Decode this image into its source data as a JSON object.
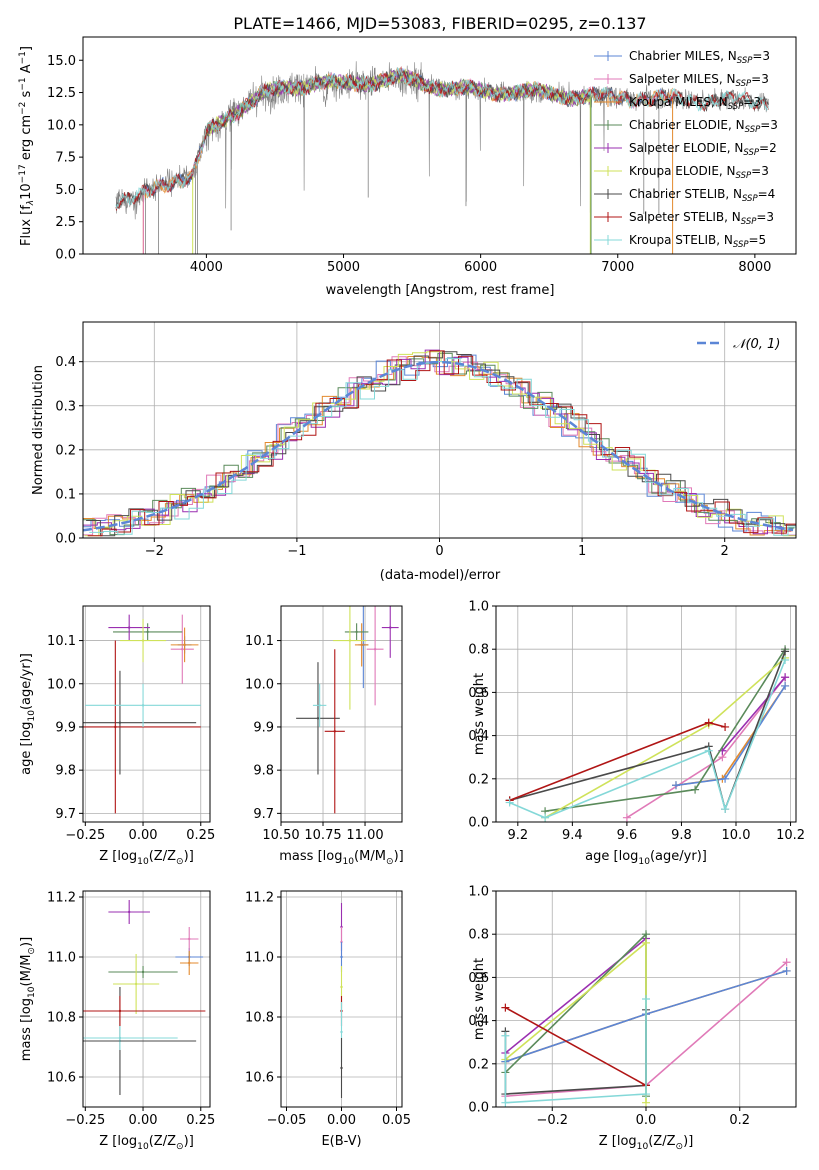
{
  "figure_title": "PLATE=1466, MJD=53083, FIBERID=0295, z=0.137",
  "colors": {
    "Chabrier MILES": "#5b86d6",
    "Salpeter MILES": "#e07ab8",
    "Kroupa MILES": "#e38a2e",
    "Chabrier ELODIE": "#5a8a5a",
    "Salpeter ELODIE": "#9a2fb0",
    "Kroupa ELODIE": "#cfe25a",
    "Chabrier STELIB": "#4a4a4a",
    "Salpeter STELIB": "#b01515",
    "Kroupa STELIB": "#84d8d8",
    "data": "#808080",
    "gaussian": "#5b86d6"
  },
  "chart_data": [
    {
      "type": "line",
      "id": "spectrum",
      "title": "PLATE=1466, MJD=53083, FIBERID=0295, z=0.137",
      "xlabel": "wavelength [Angstrom, rest frame]",
      "ylabel_parts": [
        "Flux [f",
        "λ",
        "10",
        "−17",
        " erg cm",
        "−2",
        " s",
        "−1",
        " A",
        "−1",
        "]"
      ],
      "xlim": [
        3100,
        8300
      ],
      "ylim": [
        0,
        16.8
      ],
      "xticks": [
        "4000",
        "5000",
        "6000",
        "7000",
        "8000"
      ],
      "yticks": [
        "0.0",
        "2.5",
        "5.0",
        "7.5",
        "10.0",
        "12.5",
        "15.0"
      ],
      "xtick_values": [
        4000,
        5000,
        6000,
        7000,
        8000
      ],
      "ytick_values": [
        0,
        2.5,
        5,
        7.5,
        10,
        12.5,
        15
      ],
      "data_range": [
        3340,
        8100
      ],
      "legend": [
        {
          "name": "Chabrier MILES, N",
          "sub": "SSP",
          "suffix": "=3"
        },
        {
          "name": "Salpeter MILES, N",
          "sub": "SSP",
          "suffix": "=3"
        },
        {
          "name": "Kroupa MILES, N",
          "sub": "SSP",
          "suffix": "=3"
        },
        {
          "name": "Chabrier ELODIE, N",
          "sub": "SSP",
          "suffix": "=3"
        },
        {
          "name": "Salpeter ELODIE, N",
          "sub": "SSP",
          "suffix": "=2"
        },
        {
          "name": "Kroupa ELODIE, N",
          "sub": "SSP",
          "suffix": "=3"
        },
        {
          "name": "Chabrier STELIB, N",
          "sub": "SSP",
          "suffix": "=4"
        },
        {
          "name": "Salpeter STELIB, N",
          "sub": "SSP",
          "suffix": "=3"
        },
        {
          "name": "Kroupa STELIB, N",
          "sub": "SSP",
          "suffix": "=5"
        }
      ],
      "continuum": [
        [
          3340,
          4.0
        ],
        [
          3500,
          4.3
        ],
        [
          3700,
          5.6
        ],
        [
          3900,
          6.0
        ],
        [
          4000,
          9.3
        ],
        [
          4200,
          11.0
        ],
        [
          4400,
          12.3
        ],
        [
          4600,
          12.9
        ],
        [
          4800,
          13.3
        ],
        [
          5000,
          13.1
        ],
        [
          5200,
          13.4
        ],
        [
          5400,
          13.6
        ],
        [
          5600,
          13.2
        ],
        [
          5800,
          12.8
        ],
        [
          6000,
          12.6
        ],
        [
          6200,
          12.6
        ],
        [
          6400,
          12.5
        ],
        [
          6600,
          12.3
        ],
        [
          6800,
          12.2
        ],
        [
          7000,
          12.1
        ],
        [
          7200,
          12.1
        ],
        [
          7400,
          12.0
        ],
        [
          7600,
          11.9
        ],
        [
          7800,
          11.9
        ],
        [
          8100,
          11.8
        ]
      ]
    },
    {
      "type": "histogram",
      "id": "residuals",
      "xlabel": "(data-model)/error",
      "ylabel": "Normed distribution",
      "xlim": [
        -2.5,
        2.5
      ],
      "ylim": [
        0,
        0.49
      ],
      "xticks": [
        "−2",
        "−1",
        "0",
        "1",
        "2"
      ],
      "xtick_values": [
        -2,
        -1,
        0,
        1,
        2
      ],
      "yticks": [
        "0.0",
        "0.1",
        "0.2",
        "0.3",
        "0.4"
      ],
      "ytick_values": [
        0,
        0.1,
        0.2,
        0.3,
        0.4
      ],
      "legend": "𝒩(0, 1)",
      "bin_width": 0.1
    },
    {
      "type": "scatter",
      "id": "age-vs-Z",
      "xlabel_parts": [
        "Z [log",
        "10",
        "(Z/Z",
        "⊙",
        ")]"
      ],
      "ylabel_parts": [
        "age  [log",
        "10",
        "(age/yr)]"
      ],
      "xlim": [
        -0.26,
        0.29
      ],
      "ylim": [
        9.68,
        10.18
      ],
      "xticks": [
        "−0.25",
        "0.00",
        "0.25"
      ],
      "xtick_values": [
        -0.25,
        0,
        0.25
      ],
      "yticks": [
        "9.7",
        "9.8",
        "9.9",
        "10.0",
        "10.1"
      ],
      "ytick_values": [
        9.7,
        9.8,
        9.9,
        10.0,
        10.1
      ],
      "points": [
        {
          "model": "Chabrier MILES",
          "x": 0.18,
          "y": 10.09,
          "xerr": 0.03,
          "yerr": 0.02
        },
        {
          "model": "Salpeter MILES",
          "x": 0.17,
          "y": 10.08,
          "xerr": 0.05,
          "yerr": 0.08
        },
        {
          "model": "Kroupa MILES",
          "x": 0.18,
          "y": 10.09,
          "xerr": 0.06,
          "yerr": 0.04
        },
        {
          "model": "Chabrier ELODIE",
          "x": 0.02,
          "y": 10.12,
          "xerr": 0.15,
          "yerr": 0.02
        },
        {
          "model": "Salpeter ELODIE",
          "x": -0.06,
          "y": 10.13,
          "xerr": 0.09,
          "yerr": 0.03
        },
        {
          "model": "Kroupa ELODIE",
          "x": 0.0,
          "y": 10.1,
          "xerr": 0.1,
          "yerr": 0.05
        },
        {
          "model": "Chabrier STELIB",
          "x": -0.1,
          "y": 9.91,
          "xerr": 0.33,
          "yerr": 0.12
        },
        {
          "model": "Salpeter STELIB",
          "x": -0.12,
          "y": 9.9,
          "xerr": 0.37,
          "yerr": 0.2
        },
        {
          "model": "Kroupa STELIB",
          "x": 0.0,
          "y": 9.95,
          "xerr": 0.25,
          "yerr": 0.05
        }
      ]
    },
    {
      "type": "scatter",
      "id": "age-vs-mass",
      "xlabel_parts": [
        "mass [log",
        "10",
        "(M/M",
        "⊙",
        ")]"
      ],
      "xlim": [
        10.5,
        11.22
      ],
      "ylim": [
        9.68,
        10.18
      ],
      "xticks": [
        "10.50",
        "10.75",
        "11.00"
      ],
      "xtick_values": [
        10.5,
        10.75,
        11.0
      ],
      "yticks": [
        "9.7",
        "9.8",
        "9.9",
        "10.0",
        "10.1"
      ],
      "ytick_values": [
        9.7,
        9.8,
        9.9,
        10.0,
        10.1
      ],
      "points": [
        {
          "model": "Chabrier MILES",
          "x": 10.99,
          "y": 10.09,
          "xerr": 0.03,
          "yerr": 0.1
        },
        {
          "model": "Salpeter MILES",
          "x": 11.06,
          "y": 10.08,
          "xerr": 0.05,
          "yerr": 0.13
        },
        {
          "model": "Kroupa MILES",
          "x": 10.98,
          "y": 10.09,
          "xerr": 0.04,
          "yerr": 0.05
        },
        {
          "model": "Chabrier ELODIE",
          "x": 10.95,
          "y": 10.12,
          "xerr": 0.07,
          "yerr": 0.02
        },
        {
          "model": "Salpeter ELODIE",
          "x": 11.15,
          "y": 10.13,
          "xerr": 0.05,
          "yerr": 0.07
        },
        {
          "model": "Kroupa ELODIE",
          "x": 10.91,
          "y": 10.1,
          "xerr": 0.1,
          "yerr": 0.16
        },
        {
          "model": "Chabrier STELIB",
          "x": 10.72,
          "y": 9.92,
          "xerr": 0.13,
          "yerr": 0.13
        },
        {
          "model": "Salpeter STELIB",
          "x": 10.82,
          "y": 9.89,
          "xerr": 0.06,
          "yerr": 0.19
        },
        {
          "model": "Kroupa STELIB",
          "x": 10.73,
          "y": 9.95,
          "xerr": 0.04,
          "yerr": 0.05
        }
      ]
    },
    {
      "type": "line",
      "id": "weight-vs-age",
      "xlabel_parts": [
        "age  [log",
        "10",
        "(age/yr)]"
      ],
      "ylabel": "mass weight",
      "xlim": [
        9.12,
        10.22
      ],
      "ylim": [
        0,
        1.0
      ],
      "xticks": [
        "9.2",
        "9.4",
        "9.6",
        "9.8",
        "10.0",
        "10.2"
      ],
      "xtick_values": [
        9.2,
        9.4,
        9.6,
        9.8,
        10.0,
        10.2
      ],
      "yticks": [
        "0.0",
        "0.2",
        "0.4",
        "0.6",
        "0.8",
        "1.0"
      ],
      "ytick_values": [
        0,
        0.2,
        0.4,
        0.6,
        0.8,
        1.0
      ],
      "series": [
        {
          "model": "Salpeter MILES",
          "x": [
            9.6,
            9.95,
            10.18
          ],
          "y": [
            0.02,
            0.3,
            0.67
          ]
        },
        {
          "model": "Kroupa MILES",
          "x": [
            9.78,
            9.95,
            10.18
          ],
          "y": [
            0.17,
            0.2,
            0.63
          ]
        },
        {
          "model": "Chabrier MILES",
          "x": [
            9.78,
            9.96,
            10.18
          ],
          "y": [
            0.17,
            0.2,
            0.63
          ]
        },
        {
          "model": "Salpeter ELODIE",
          "x": [
            9.95,
            10.18
          ],
          "y": [
            0.33,
            0.67
          ]
        },
        {
          "model": "Chabrier ELODIE",
          "x": [
            9.3,
            9.85,
            10.18
          ],
          "y": [
            0.05,
            0.15,
            0.8
          ]
        },
        {
          "model": "Kroupa ELODIE",
          "x": [
            9.3,
            9.9,
            10.18
          ],
          "y": [
            0.02,
            0.45,
            0.76
          ]
        },
        {
          "model": "Chabrier STELIB",
          "x": [
            9.17,
            9.9,
            9.96,
            10.18
          ],
          "y": [
            0.1,
            0.35,
            0.06,
            0.79
          ]
        },
        {
          "model": "Salpeter STELIB",
          "x": [
            9.17,
            9.9,
            9.96
          ],
          "y": [
            0.1,
            0.46,
            0.44
          ]
        },
        {
          "model": "Kroupa STELIB",
          "x": [
            9.17,
            9.3,
            9.9,
            9.96,
            10.18
          ],
          "y": [
            0.09,
            0.02,
            0.33,
            0.06,
            0.75
          ]
        }
      ]
    },
    {
      "type": "scatter",
      "id": "mass-vs-Z",
      "xlabel_parts": [
        "Z [log",
        "10",
        "(Z/Z",
        "⊙",
        ")]"
      ],
      "ylabel_parts": [
        "mass [log",
        "10",
        "(M/M",
        "⊙",
        ")]"
      ],
      "xlim": [
        -0.26,
        0.29
      ],
      "ylim": [
        10.5,
        11.22
      ],
      "xticks": [
        "−0.25",
        "0.00",
        "0.25"
      ],
      "xtick_values": [
        -0.25,
        0,
        0.25
      ],
      "yticks": [
        "10.6",
        "10.8",
        "11.0",
        "11.2"
      ],
      "ytick_values": [
        10.6,
        10.8,
        11.0,
        11.2
      ],
      "points": [
        {
          "model": "Chabrier MILES",
          "x": 0.2,
          "y": 11.0,
          "xerr": 0.06,
          "yerr": 0.03
        },
        {
          "model": "Salpeter MILES",
          "x": 0.2,
          "y": 11.06,
          "xerr": 0.04,
          "yerr": 0.04
        },
        {
          "model": "Kroupa MILES",
          "x": 0.2,
          "y": 10.98,
          "xerr": 0.04,
          "yerr": 0.04
        },
        {
          "model": "Chabrier ELODIE",
          "x": 0.0,
          "y": 10.95,
          "xerr": 0.15,
          "yerr": 0.02
        },
        {
          "model": "Salpeter ELODIE",
          "x": -0.06,
          "y": 11.15,
          "xerr": 0.09,
          "yerr": 0.04
        },
        {
          "model": "Kroupa ELODIE",
          "x": -0.03,
          "y": 10.91,
          "xerr": 0.1,
          "yerr": 0.1
        },
        {
          "model": "Chabrier STELIB",
          "x": -0.1,
          "y": 10.72,
          "xerr": 0.33,
          "yerr": 0.18
        },
        {
          "model": "Salpeter STELIB",
          "x": -0.1,
          "y": 10.82,
          "xerr": 0.37,
          "yerr": 0.05
        },
        {
          "model": "Kroupa STELIB",
          "x": -0.1,
          "y": 10.73,
          "xerr": 0.25,
          "yerr": 0.04
        }
      ]
    },
    {
      "type": "scatter",
      "id": "mass-vs-ebv",
      "xlabel": "E(B-V)",
      "xlim": [
        -0.055,
        0.055
      ],
      "ylim": [
        10.5,
        11.22
      ],
      "xticks": [
        "−0.05",
        "0.00",
        "0.05"
      ],
      "xtick_values": [
        -0.05,
        0,
        0.05
      ],
      "yticks": [
        "10.6",
        "10.8",
        "11.0",
        "11.2"
      ],
      "ytick_values": [
        10.6,
        10.8,
        11.0,
        11.2
      ],
      "points": [
        {
          "model": "Salpeter ELODIE",
          "x": 0.0,
          "y": 11.1,
          "xerr": 0,
          "yerr": 0.08
        },
        {
          "model": "Salpeter MILES",
          "x": 0.0,
          "y": 11.05,
          "xerr": 0,
          "yerr": 0.05
        },
        {
          "model": "Chabrier MILES",
          "x": 0.0,
          "y": 11.0,
          "xerr": 0,
          "yerr": 0.05
        },
        {
          "model": "Kroupa ELODIE",
          "x": 0.0,
          "y": 10.9,
          "xerr": 0,
          "yerr": 0.07
        },
        {
          "model": "Salpeter STELIB",
          "x": 0.0,
          "y": 10.82,
          "xerr": 0,
          "yerr": 0.05
        },
        {
          "model": "Kroupa STELIB",
          "x": 0.0,
          "y": 10.75,
          "xerr": 0,
          "yerr": 0.1
        },
        {
          "model": "Chabrier STELIB",
          "x": 0.0,
          "y": 10.63,
          "xerr": 0,
          "yerr": 0.1
        }
      ]
    },
    {
      "type": "line",
      "id": "weight-vs-Z",
      "xlabel_parts": [
        "Z [log",
        "10",
        "(Z/Z",
        "⊙",
        ")]"
      ],
      "ylabel": "mass weight",
      "xlim": [
        -0.32,
        0.32
      ],
      "ylim": [
        0,
        1.0
      ],
      "xticks": [
        "−0.2",
        "0.0",
        "0.2"
      ],
      "xtick_values": [
        -0.2,
        0,
        0.2
      ],
      "yticks": [
        "0.0",
        "0.2",
        "0.4",
        "0.6",
        "0.8",
        "1.0"
      ],
      "ytick_values": [
        0,
        0.2,
        0.4,
        0.6,
        0.8,
        1.0
      ],
      "series": [
        {
          "model": "Salpeter MILES",
          "x": [
            -0.3,
            0.0,
            0.3
          ],
          "y": [
            0.05,
            0.1,
            0.67
          ]
        },
        {
          "model": "Kroupa MILES",
          "x": [
            -0.3,
            0.0,
            0.3
          ],
          "y": [
            0.21,
            0.43,
            0.63
          ]
        },
        {
          "model": "Chabrier MILES",
          "x": [
            -0.3,
            0.0,
            0.3
          ],
          "y": [
            0.21,
            0.43,
            0.63
          ]
        },
        {
          "model": "Salpeter ELODIE",
          "x": [
            -0.3,
            0.0
          ],
          "y": [
            0.25,
            0.78
          ]
        },
        {
          "model": "Chabrier ELODIE",
          "x": [
            -0.3,
            0.0,
            0.0
          ],
          "y": [
            0.16,
            0.8,
            0.05
          ]
        },
        {
          "model": "Kroupa ELODIE",
          "x": [
            -0.3,
            0.0,
            0.0
          ],
          "y": [
            0.22,
            0.76,
            0.02
          ]
        },
        {
          "model": "Chabrier STELIB",
          "x": [
            -0.3,
            -0.3,
            0.0,
            0.0
          ],
          "y": [
            0.35,
            0.06,
            0.1,
            0.45
          ]
        },
        {
          "model": "Salpeter STELIB",
          "x": [
            -0.3,
            0.0
          ],
          "y": [
            0.46,
            0.1
          ]
        },
        {
          "model": "Kroupa STELIB",
          "x": [
            -0.3,
            -0.3,
            0.0,
            0.0
          ],
          "y": [
            0.33,
            0.02,
            0.06,
            0.5
          ]
        }
      ]
    }
  ]
}
